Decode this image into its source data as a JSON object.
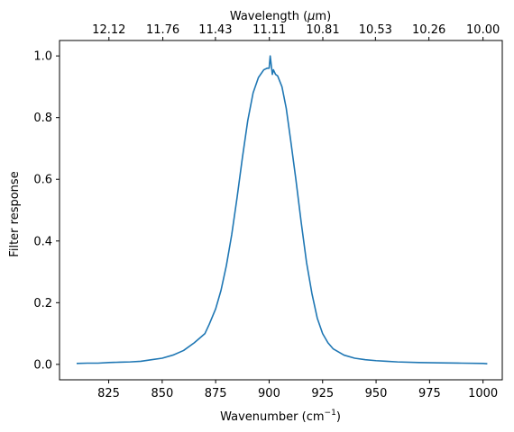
{
  "chart_data": {
    "type": "line",
    "xlabel": "Wavenumber (cm",
    "xlabel_sup": "−1",
    "xlabel_close": ")",
    "ylabel": "Filter response",
    "top_xlabel": "Wavelength (",
    "top_xlabel_mu": "μ",
    "top_xlabel_close": "m)",
    "xlim": [
      802,
      1009
    ],
    "ylim": [
      -0.05,
      1.05
    ],
    "x_ticks": [
      825,
      850,
      875,
      900,
      925,
      950,
      975,
      1000
    ],
    "y_ticks": [
      "0.0",
      "0.2",
      "0.4",
      "0.6",
      "0.8",
      "1.0"
    ],
    "y_tick_values": [
      0.0,
      0.2,
      0.4,
      0.6,
      0.8,
      1.0
    ],
    "top_ticks": [
      {
        "label": "12.12",
        "wavenumber": 825.1
      },
      {
        "label": "11.76",
        "wavenumber": 850.3
      },
      {
        "label": "11.43",
        "wavenumber": 874.9
      },
      {
        "label": "11.11",
        "wavenumber": 900.1
      },
      {
        "label": "10.81",
        "wavenumber": 925.1
      },
      {
        "label": "10.53",
        "wavenumber": 949.7
      },
      {
        "label": "10.26",
        "wavenumber": 974.7
      },
      {
        "label": "10.00",
        "wavenumber": 1000.0
      }
    ],
    "grid": false,
    "series": [
      {
        "color": "#1f77b4",
        "x": [
          810,
          815,
          820,
          825,
          830,
          835,
          840,
          845,
          850,
          855,
          860,
          865,
          870,
          872,
          875,
          877.5,
          880,
          882.5,
          885,
          887.5,
          890,
          892.5,
          895,
          897.5,
          899,
          900,
          900.5,
          901,
          901.5,
          902,
          903,
          904,
          906,
          908,
          910,
          912.5,
          915,
          917.5,
          920,
          922.5,
          925,
          927.5,
          930,
          935,
          940,
          945,
          950,
          955,
          960,
          970,
          980,
          990,
          1000,
          1002
        ],
        "y": [
          0.003,
          0.004,
          0.004,
          0.006,
          0.007,
          0.008,
          0.01,
          0.015,
          0.02,
          0.03,
          0.045,
          0.07,
          0.1,
          0.13,
          0.18,
          0.24,
          0.32,
          0.42,
          0.54,
          0.67,
          0.79,
          0.88,
          0.93,
          0.955,
          0.96,
          0.96,
          1.0,
          0.97,
          0.94,
          0.955,
          0.94,
          0.935,
          0.9,
          0.83,
          0.73,
          0.6,
          0.46,
          0.33,
          0.23,
          0.15,
          0.1,
          0.07,
          0.05,
          0.03,
          0.02,
          0.015,
          0.012,
          0.01,
          0.008,
          0.006,
          0.005,
          0.004,
          0.003,
          0.002
        ]
      }
    ]
  }
}
